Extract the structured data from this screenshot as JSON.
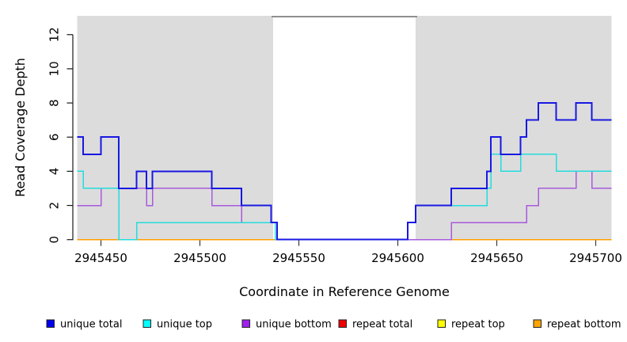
{
  "figure": {
    "x_title": "Coordinate in Reference Genome",
    "y_title": "Read Coverage Depth"
  },
  "chart_data": {
    "type": "line",
    "step": true,
    "title": "",
    "xlabel": "Coordinate in Reference Genome",
    "ylabel": "Read Coverage Depth",
    "xlim": [
      2945438,
      2945708
    ],
    "ylim": [
      0,
      13.1
    ],
    "grid": false,
    "x_ticks": [
      2945450,
      2945500,
      2945550,
      2945600,
      2945650,
      2945700
    ],
    "y_ticks": [
      0,
      2,
      4,
      6,
      8,
      10,
      12
    ],
    "shaded_regions": [
      [
        2945438,
        2945537
      ],
      [
        2945609,
        2945708
      ]
    ],
    "shade_color": "#dcdcdc",
    "gap_top_border_color": "#8f8f8f",
    "series": [
      {
        "name": "repeat top",
        "color": "#ffff00",
        "width": 1.5,
        "points": [
          [
            2945438,
            0
          ]
        ]
      },
      {
        "name": "repeat total",
        "color": "#e01010",
        "width": 1.5,
        "points": [
          [
            2945438,
            0
          ]
        ]
      },
      {
        "name": "repeat bottom",
        "color": "#ff9d00",
        "width": 1.8,
        "points": [
          [
            2945438,
            0
          ]
        ]
      },
      {
        "name": "unique bottom",
        "color": "#a85add",
        "width": 1.5,
        "points": [
          [
            2945438,
            2
          ],
          [
            2945450,
            3
          ],
          [
            2945473,
            2
          ],
          [
            2945476,
            3
          ],
          [
            2945506,
            2
          ],
          [
            2945521,
            1
          ],
          [
            2945538,
            0
          ],
          [
            2945627,
            1
          ],
          [
            2945665,
            2
          ],
          [
            2945671,
            3
          ],
          [
            2945690,
            4
          ],
          [
            2945698,
            3
          ]
        ]
      },
      {
        "name": "unique top",
        "color": "#25dcdc",
        "width": 1.5,
        "points": [
          [
            2945438,
            4
          ],
          [
            2945441,
            3
          ],
          [
            2945459,
            0
          ],
          [
            2945468,
            1
          ],
          [
            2945538,
            0
          ],
          [
            2945605,
            1
          ],
          [
            2945609,
            2
          ],
          [
            2945645,
            3
          ],
          [
            2945647,
            5
          ],
          [
            2945652,
            4
          ],
          [
            2945662,
            5
          ],
          [
            2945680,
            4
          ]
        ]
      },
      {
        "name": "unique total",
        "color": "#1818e2",
        "width": 2,
        "points": [
          [
            2945438,
            6
          ],
          [
            2945441,
            5
          ],
          [
            2945450,
            6
          ],
          [
            2945459,
            3
          ],
          [
            2945468,
            4
          ],
          [
            2945473,
            3
          ],
          [
            2945476,
            4
          ],
          [
            2945506,
            3
          ],
          [
            2945521,
            2
          ],
          [
            2945536,
            1
          ],
          [
            2945539,
            0
          ],
          [
            2945605,
            1
          ],
          [
            2945609,
            2
          ],
          [
            2945627,
            3
          ],
          [
            2945645,
            4
          ],
          [
            2945647,
            6
          ],
          [
            2945652,
            5
          ],
          [
            2945662,
            6
          ],
          [
            2945665,
            7
          ],
          [
            2945671,
            8
          ],
          [
            2945680,
            7
          ],
          [
            2945690,
            8
          ],
          [
            2945698,
            7
          ]
        ]
      }
    ],
    "legend_position": "bottom",
    "legend": [
      {
        "label": "unique total",
        "color": "#0000ee"
      },
      {
        "label": "unique top",
        "color": "#00ffff"
      },
      {
        "label": "unique bottom",
        "color": "#a020f0"
      },
      {
        "label": "repeat total",
        "color": "#ee0000"
      },
      {
        "label": "repeat top",
        "color": "#ffff00"
      },
      {
        "label": "repeat bottom",
        "color": "#ffa500"
      }
    ]
  }
}
